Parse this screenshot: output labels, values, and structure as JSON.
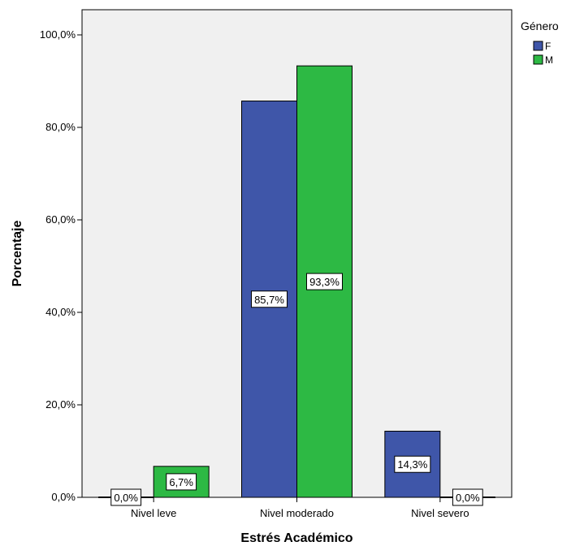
{
  "chart_data": {
    "type": "bar",
    "xlabel": "Estrés Académico",
    "ylabel": "Porcentaje",
    "ylim": [
      0,
      100
    ],
    "yticks": [
      "0,0%",
      "20,0%",
      "40,0%",
      "60,0%",
      "80,0%",
      "100,0%"
    ],
    "ytick_values": [
      0,
      20,
      40,
      60,
      80,
      100
    ],
    "categories": [
      "Nivel leve",
      "Nivel moderado",
      "Nivel severo"
    ],
    "legend_title": "Género",
    "legend_position": "top-right",
    "grid": false,
    "series": [
      {
        "name": "F",
        "color": "#3f56a9",
        "values": [
          0.0,
          85.7,
          14.3
        ],
        "labels": [
          "0,0%",
          "85,7%",
          "14,3%"
        ]
      },
      {
        "name": "M",
        "color": "#2db944",
        "values": [
          6.7,
          93.3,
          0.0
        ],
        "labels": [
          "6,7%",
          "93,3%",
          "0,0%"
        ]
      }
    ],
    "plot_background": "#f0f0f0"
  }
}
